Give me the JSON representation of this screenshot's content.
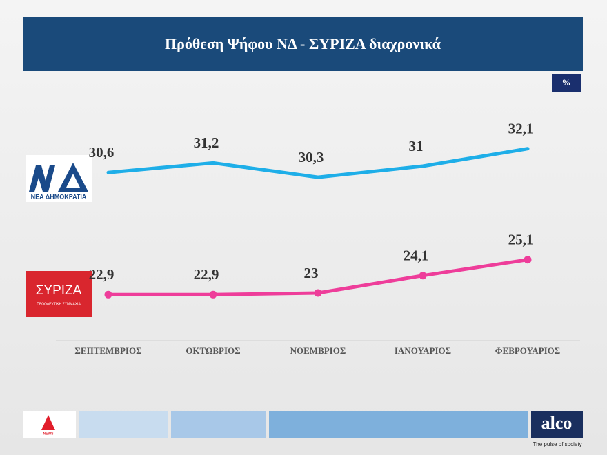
{
  "chart_data": {
    "type": "line",
    "title": "Πρόθεση Ψήφου ΝΔ  - ΣΥΡΙΖΑ διαχρονικά",
    "unit": "%",
    "categories": [
      "ΣΕΠΤΕΜΒΡΙΟΣ",
      "ΟΚΤΩΒΡΙΟΣ",
      "ΝΟΕΜΒΡΙΟΣ",
      "ΙΑΝΟΥΑΡΙΟΣ",
      "ΦΕΒΡΟΥΑΡΙΟΣ"
    ],
    "series": [
      {
        "name": "ΝΕΑ ΔΗΜΟΚΡΑΤΙΑ",
        "color": "#1eaee8",
        "markers": false,
        "values": [
          30.6,
          31.2,
          30.3,
          31,
          32.1
        ],
        "value_labels": [
          "30,6",
          "31,2",
          "30,3",
          "31",
          "32,1"
        ]
      },
      {
        "name": "ΣΥΡΙΖΑ",
        "logo_caption": "ΠΡΟΟΔΕΥΤΙΚΗ ΣΥΜΜΑΧΙΑ",
        "color": "#ee3d9a",
        "markers": true,
        "values": [
          22.9,
          22.9,
          23,
          24.1,
          25.1
        ],
        "value_labels": [
          "22,9",
          "22,9",
          "23",
          "24,1",
          "25,1"
        ]
      }
    ],
    "ylim": [
      20,
      34
    ],
    "channel": "NEWS",
    "brand": "alco",
    "tagline": "The pulse of society"
  }
}
